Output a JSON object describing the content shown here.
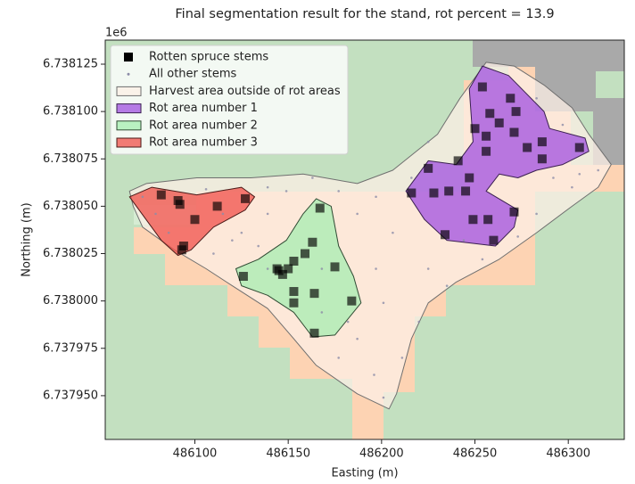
{
  "chart_data": {
    "type": "scatter",
    "title": "Final segmentation result for the stand, rot percent = 13.9",
    "xlabel": "Easting (m)",
    "ylabel": "Northing (m)",
    "y_offset_label": "1e6",
    "xlim": [
      486052,
      486330
    ],
    "ylim": [
      6.7379269,
      6.7381377
    ],
    "xticks": [
      486100,
      486150,
      486200,
      486250,
      486300
    ],
    "yticks": [
      6.738125,
      {
        "value": 6.7381,
        "label": "6.738100"
      },
      6.738075,
      {
        "value": 6.73805,
        "label": "6.738050"
      },
      6.738025,
      {
        "value": 6.738,
        "label": "6.738000"
      },
      6.737975,
      {
        "value": 6.73795,
        "label": "6.737950"
      }
    ],
    "legend": "upper left",
    "series": [
      {
        "name": "Rotten spruce stems",
        "kind": "points",
        "marker": "square",
        "color": "#000000",
        "x": [
          486082,
          486091,
          486092,
          486100,
          486112,
          486127,
          486094,
          486093,
          486167,
          486163,
          486159,
          486175,
          486153,
          486150,
          486145,
          486147,
          486126,
          486153,
          486164,
          486153,
          486184,
          486164,
          486144,
          486254,
          486269,
          486258,
          486272,
          486250,
          486263,
          486256,
          486271,
          486286,
          486278,
          486286,
          486256,
          486225,
          486228,
          486236,
          486245,
          486249,
          486257,
          486271,
          486234,
          486260,
          486306,
          486247,
          486241,
          486216
        ],
        "y": [
          6.738056,
          6.738053,
          6.738051,
          6.738043,
          6.73805,
          6.738054,
          6.738029,
          6.738027,
          6.738049,
          6.738031,
          6.738025,
          6.738018,
          6.738021,
          6.738017,
          6.738016,
          6.738014,
          6.738013,
          6.738005,
          6.738004,
          6.737999,
          6.738,
          6.737983,
          6.738017,
          6.738113,
          6.738107,
          6.738099,
          6.7381,
          6.738091,
          6.738094,
          6.738087,
          6.738089,
          6.738084,
          6.738081,
          6.738075,
          6.738079,
          6.73807,
          6.738057,
          6.738058,
          6.738058,
          6.738043,
          6.738043,
          6.738047,
          6.738035,
          6.738032,
          6.738081,
          6.738065,
          6.738074,
          6.738057
        ]
      },
      {
        "name": "All other stems",
        "kind": "points",
        "marker": "dot",
        "color": "#8c8ca8",
        "x": [
          486072,
          486079,
          486086,
          486110,
          486120,
          486139,
          486149,
          486139,
          486177,
          486187,
          486197,
          486206,
          486197,
          486201,
          486187,
          486177,
          486196,
          486201,
          486211,
          486220,
          486235,
          486254,
          486283,
          486302,
          486292,
          486306,
          486316,
          486297,
          486283,
          486216,
          486225,
          486163,
          486106,
          486115,
          486125,
          486134,
          486168,
          486182,
          486168,
          486139,
          486225,
          486244,
          486273
        ],
        "y": [
          6.738055,
          6.738046,
          6.738036,
          6.738025,
          6.738032,
          6.738046,
          6.738058,
          6.73806,
          6.738058,
          6.738046,
          6.738055,
          6.738036,
          6.738017,
          6.737999,
          6.73798,
          6.73797,
          6.737961,
          6.737949,
          6.73797,
          6.737989,
          6.738008,
          6.738022,
          6.738046,
          6.73806,
          6.738065,
          6.738067,
          6.738069,
          6.738093,
          6.738107,
          6.738065,
          6.738084,
          6.738065,
          6.738059,
          6.738046,
          6.738036,
          6.738029,
          6.738017,
          6.737989,
          6.737994,
          6.738017,
          6.738017,
          6.738032,
          6.738034
        ]
      },
      {
        "name": "Harvest area outside of rot areas",
        "kind": "area",
        "color": "#fcefe6",
        "edge": "#6f6f6f",
        "x": [
          486065,
          486067,
          486072,
          486089,
          486106,
          486120,
          486139,
          486153,
          486165,
          486187,
          486204,
          486208,
          486216,
          486225,
          486240,
          486263,
          486283,
          486302,
          486316,
          486323,
          486311,
          486302,
          486287,
          486271,
          486256,
          486242,
          486230,
          486206,
          486187,
          486158,
          486130,
          486101,
          486074
        ],
        "y": [
          6.738058,
          6.73805,
          6.738039,
          6.738027,
          6.738017,
          6.738008,
          6.737996,
          6.73798,
          6.737966,
          6.737951,
          6.737943,
          6.737951,
          6.73798,
          6.737999,
          6.73801,
          6.738022,
          6.738036,
          6.73805,
          6.73806,
          6.738072,
          6.738088,
          6.738102,
          6.738114,
          6.738124,
          6.738126,
          6.738107,
          6.738088,
          6.738069,
          6.738062,
          6.738067,
          6.738065,
          6.738065,
          6.738062
        ]
      },
      {
        "name": "Rot area number 1",
        "kind": "area",
        "color": "#a050e0",
        "edge": "#3a2050",
        "x": [
          486213,
          486225,
          486240,
          486249,
          486247,
          486254,
          486268,
          486287,
          486290,
          486309,
          486311,
          486297,
          486283,
          486273,
          486263,
          486256,
          486273,
          486271,
          486261,
          486235,
          486223
        ],
        "y": [
          6.738058,
          6.738074,
          6.738072,
          6.738084,
          6.738112,
          6.738124,
          6.738119,
          6.7381,
          6.738091,
          6.738086,
          6.738079,
          6.738072,
          6.738069,
          6.738065,
          6.738067,
          6.738058,
          6.738048,
          6.738039,
          6.738029,
          6.738032,
          6.738043
        ]
      },
      {
        "name": "Rot area number 2",
        "kind": "area",
        "color": "#a6eeb0",
        "edge": "#2f4a33",
        "x": [
          486122,
          486134,
          486149,
          486158,
          486165,
          486173,
          486177,
          486185,
          486189,
          486175,
          486163,
          486153,
          486139,
          486125
        ],
        "y": [
          6.738017,
          6.738022,
          6.738032,
          6.738046,
          6.738054,
          6.73805,
          6.738029,
          6.738013,
          6.737999,
          6.737982,
          6.737981,
          6.737994,
          6.738003,
          6.738008
        ]
      },
      {
        "name": "Rot area number 3",
        "kind": "area",
        "color": "#f0504a",
        "edge": "#4a1a18",
        "x": [
          486065,
          486077,
          486101,
          486125,
          486132,
          486127,
          486110,
          486098,
          486091,
          486082
        ],
        "y": [
          6.738055,
          6.73806,
          6.738056,
          6.73806,
          6.738055,
          6.738048,
          6.738039,
          6.738027,
          6.738024,
          6.738032
        ]
      }
    ]
  }
}
